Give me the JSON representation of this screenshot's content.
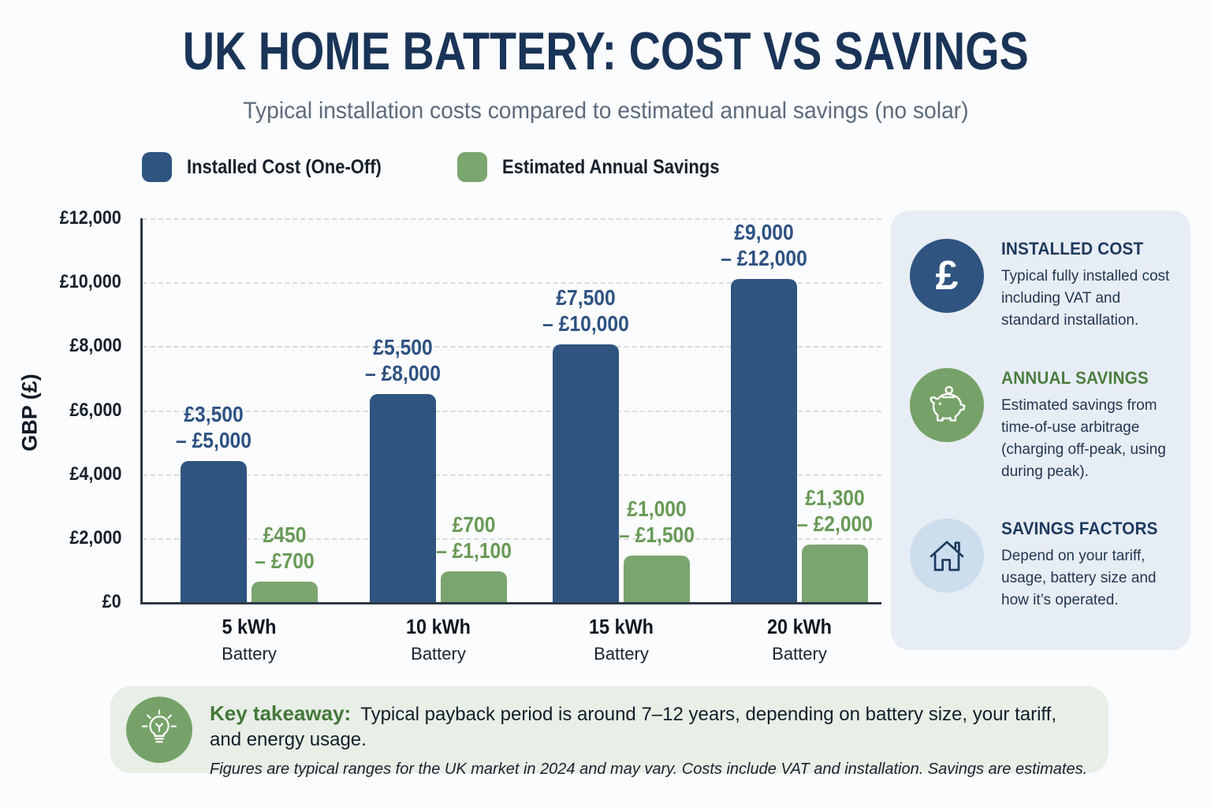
{
  "page": {
    "title": "UK HOME BATTERY: COST VS SAVINGS",
    "subtitle": "Typical installation costs compared to estimated annual savings (no solar)"
  },
  "legend": {
    "items": [
      {
        "label": "Installed Cost (One-Off)",
        "color": "#2f547f"
      },
      {
        "label": "Estimated Annual Savings",
        "color": "#7ba56f"
      }
    ]
  },
  "chart_data": {
    "type": "bar",
    "title": "UK Home Battery: Cost vs Savings",
    "xlabel": "",
    "ylabel": "GBP (£)",
    "ylim": [
      0,
      12000
    ],
    "yticks": [
      0,
      2000,
      4000,
      6000,
      8000,
      10000,
      12000
    ],
    "ytick_labels": [
      "£0",
      "£2,000",
      "£4,000",
      "£6,000",
      "£8,000",
      "£10,000",
      "£12,000"
    ],
    "grid": "horizontal-dashed",
    "legend_position": "top-center",
    "categories": [
      "5 kWh",
      "10 kWh",
      "15 kWh",
      "20 kWh"
    ],
    "category_subline": "Battery",
    "series": [
      {
        "name": "Installed Cost (One-Off)",
        "color": "#2f547f",
        "label_color": "#2e5282",
        "bar_values": [
          4400,
          6500,
          8050,
          10100
        ],
        "range_min": [
          3500,
          5500,
          7500,
          9000
        ],
        "range_max": [
          5000,
          8000,
          10000,
          12000
        ],
        "range_labels": [
          [
            "£3,500",
            "– £5,000"
          ],
          [
            "£5,500",
            "– £8,000"
          ],
          [
            "£7,500",
            "– £10,000"
          ],
          [
            "£9,000",
            "– £12,000"
          ]
        ]
      },
      {
        "name": "Estimated Annual Savings",
        "color": "#7ba56f",
        "label_color": "#699a57",
        "bar_values": [
          650,
          950,
          1450,
          1800
        ],
        "range_min": [
          450,
          700,
          1000,
          1300
        ],
        "range_max": [
          700,
          1100,
          1500,
          2000
        ],
        "range_labels": [
          [
            "£450",
            "– £700"
          ],
          [
            "£700",
            "– £1,100"
          ],
          [
            "£1,000",
            "– £1,500"
          ],
          [
            "£1,300",
            "– £2,000"
          ]
        ]
      }
    ]
  },
  "sidebar": {
    "items": [
      {
        "icon": "pound-icon",
        "icon_bg": "#2f547f",
        "heading": "INSTALLED COST",
        "heading_color": "#1c3a5e",
        "body": "Typical fully installed cost including VAT and standard installation."
      },
      {
        "icon": "piggy-bank-icon",
        "icon_bg": "#76a269",
        "heading": "ANNUAL SAVINGS",
        "heading_color": "#4d7d3f",
        "body": "Estimated savings from time-of-use arbitrage (charging off-peak, using during peak)."
      },
      {
        "icon": "house-icon",
        "icon_bg": "#ccddee",
        "heading": "SAVINGS FACTORS",
        "heading_color": "#1c3a5e",
        "body": "Depend on your tariff, usage, battery size and how it’s operated."
      }
    ]
  },
  "takeaway": {
    "icon": "lightbulb-icon",
    "icon_bg": "#76a269",
    "label": "Key takeaway:",
    "text": "Typical payback period is around 7–12 years, depending on battery size, your tariff, and energy usage.",
    "footnote": "Figures are typical ranges for the UK market in 2024 and may vary. Costs include VAT and installation. Savings are estimates."
  }
}
